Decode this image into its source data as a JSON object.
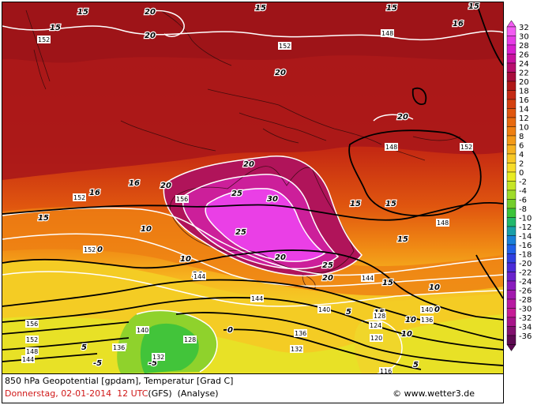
{
  "map": {
    "labels_temperature_isotherms": [
      "15",
      "20",
      "20",
      "20",
      "15",
      "15",
      "16",
      "15",
      "152",
      "152",
      "20",
      "20",
      "20",
      "16",
      "20",
      "148",
      "148",
      "152",
      "15",
      "16",
      "16",
      "20",
      "25",
      "30",
      "25",
      "20",
      "15",
      "15",
      "15",
      "148",
      "15",
      "10",
      "10",
      "10",
      "25",
      "20",
      "20",
      "10",
      "0",
      "5",
      "5",
      "5",
      "0",
      "0",
      "-5",
      "-5",
      "-5",
      "10",
      "10",
      "10",
      "5",
      "5",
      "10",
      "5",
      "15",
      "16",
      "5"
    ],
    "labels_geopotential": [
      "152",
      "152",
      "152",
      "148",
      "148",
      "152",
      "156",
      "152",
      "144",
      "144",
      "144",
      "144",
      "140",
      "140",
      "136",
      "136",
      "132",
      "132",
      "128",
      "128",
      "124",
      "120",
      "116",
      "156",
      "152",
      "148",
      "140",
      "136",
      "140",
      "136",
      "132"
    ],
    "isotherm_labels": [
      {
        "text": "15"
      },
      {
        "text": "20"
      },
      {
        "text": "20"
      },
      {
        "text": "15"
      },
      {
        "text": "15"
      },
      {
        "text": "15"
      },
      {
        "text": "16"
      },
      {
        "text": "15"
      },
      {
        "text": "20"
      },
      {
        "text": "20"
      },
      {
        "text": "20"
      },
      {
        "text": "15"
      },
      {
        "text": "16"
      },
      {
        "text": "16"
      },
      {
        "text": "20"
      },
      {
        "text": "25"
      },
      {
        "text": "30"
      },
      {
        "text": "25"
      },
      {
        "text": "20"
      },
      {
        "text": "15"
      },
      {
        "text": "15"
      },
      {
        "text": "15"
      },
      {
        "text": "10"
      },
      {
        "text": "10"
      },
      {
        "text": "25"
      },
      {
        "text": "20"
      },
      {
        "text": "20"
      },
      {
        "text": "10"
      },
      {
        "text": "0"
      },
      {
        "text": "5"
      },
      {
        "text": "5"
      },
      {
        "text": "0"
      },
      {
        "text": "-5"
      },
      {
        "text": "-5"
      },
      {
        "text": "10"
      },
      {
        "text": "10"
      },
      {
        "text": "5"
      },
      {
        "text": "5"
      },
      {
        "text": "10"
      },
      {
        "text": "15"
      },
      {
        "text": "15"
      }
    ],
    "geopotential_labels": [
      {
        "text": "152"
      },
      {
        "text": "152"
      },
      {
        "text": "148"
      },
      {
        "text": "148"
      },
      {
        "text": "152"
      },
      {
        "text": "152"
      },
      {
        "text": "156"
      },
      {
        "text": "152"
      },
      {
        "text": "144"
      },
      {
        "text": "144"
      },
      {
        "text": "144"
      },
      {
        "text": "144"
      },
      {
        "text": "140"
      },
      {
        "text": "140"
      },
      {
        "text": "136"
      },
      {
        "text": "136"
      },
      {
        "text": "132"
      },
      {
        "text": "132"
      },
      {
        "text": "128"
      },
      {
        "text": "128"
      },
      {
        "text": "124"
      },
      {
        "text": "120"
      },
      {
        "text": "116"
      },
      {
        "text": "156"
      },
      {
        "text": "152"
      },
      {
        "text": "148"
      },
      {
        "text": "140"
      },
      {
        "text": "136"
      },
      {
        "text": "148"
      }
    ]
  },
  "legend": {
    "values": [
      "32",
      "30",
      "28",
      "26",
      "24",
      "22",
      "20",
      "18",
      "16",
      "14",
      "12",
      "10",
      "8",
      "6",
      "4",
      "2",
      "0",
      "-2",
      "-4",
      "-6",
      "-8",
      "-10",
      "-12",
      "-14",
      "-16",
      "-18",
      "-20",
      "-22",
      "-24",
      "-26",
      "-28",
      "-30",
      "-32",
      "-34",
      "-36"
    ],
    "colors": [
      "#f25cf2",
      "#e63ce6",
      "#d81fcf",
      "#c8129e",
      "#b80f6e",
      "#a80d3c",
      "#b01818",
      "#c42a14",
      "#d4400f",
      "#e0560f",
      "#e86a10",
      "#ef8012",
      "#f39a18",
      "#f6b220",
      "#f8c826",
      "#f7dc2a",
      "#e8ec22",
      "#c6e626",
      "#9fdc2a",
      "#74ce2c",
      "#3cc43a",
      "#22b86c",
      "#1a9fa8",
      "#1a80d8",
      "#2060e8",
      "#3040e0",
      "#4a2cd8",
      "#6a22cc",
      "#8a1cbe",
      "#a21aae",
      "#b81aa2",
      "#c61c96",
      "#a8148a",
      "#82106e",
      "#5e0a52"
    ]
  },
  "footer": {
    "line1": "850 hPa Geopotential [gpdam], Temperatur [Grad C]",
    "date": "Donnerstag, 02-01-2014  12 UTC",
    "model": "(GFS)  (Analyse)",
    "credit": "© www.wetter3.de"
  }
}
